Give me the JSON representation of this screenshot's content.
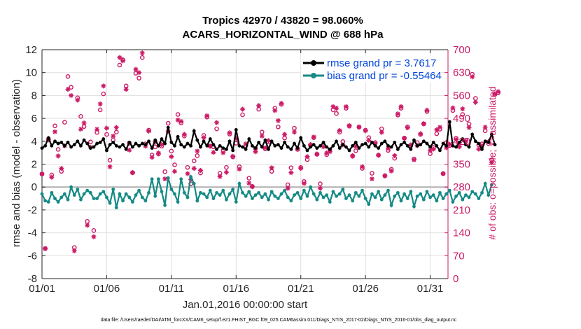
{
  "chart_data": {
    "type": "line",
    "title": "Tropics 42970 / 43820 = 98.060%",
    "subtitle": "ACARS_HORIZONTAL_WIND @ 688 hPa",
    "xlabel": "Jan.01,2016 00:00:00 start",
    "ylabel": "rmse and bias (model - observation)",
    "y2label": "# of obs: o=possible; ×=assimilated",
    "footer": "data file: /Users/raeder/DAI/ATM_forcXX/CAM6_setup/f.e21.FHIST_BGC.f09_025.CAM6assim.011/Diags_NTrS_2017-02/Diags_NTrS_2016-01/obs_diag_output.nc",
    "xlim": [
      0,
      31.375
    ],
    "ylim": [
      -8,
      12
    ],
    "y2lim": [
      0,
      700
    ],
    "x_ticks": [
      0,
      5,
      10,
      15,
      20,
      25,
      30
    ],
    "x_ticklabels": [
      "01/01",
      "01/06",
      "01/11",
      "01/16",
      "01/21",
      "01/26",
      "01/31"
    ],
    "y_ticks": [
      -8,
      -6,
      -4,
      -2,
      0,
      2,
      4,
      6,
      8,
      10,
      12
    ],
    "y2_ticks": [
      0,
      70,
      140,
      210,
      280,
      350,
      420,
      490,
      560,
      630,
      700
    ],
    "legend_location": "top-right",
    "series": [
      {
        "name": "rmse",
        "legend_label": "rmse grand pr = 3.7617",
        "color": "#000000",
        "marker": "circle",
        "values": [
          3.4,
          3.6,
          4.3,
          3.6,
          4.0,
          3.8,
          3.9,
          3.6,
          3.9,
          3.5,
          3.7,
          4.0,
          3.6,
          4.1,
          3.8,
          3.4,
          3.5,
          3.8,
          3.9,
          4.2,
          3.2,
          3.7,
          3.9,
          3.6,
          3.5,
          3.7,
          3.3,
          3.9,
          3.5,
          3.8,
          3.6,
          3.8,
          3.7,
          4.0,
          3.4,
          4.1,
          3.6,
          4.2,
          3.8,
          5.2,
          3.9,
          3.6,
          4.4,
          3.7,
          3.5,
          3.8,
          3.6,
          4.9,
          4.1,
          3.5,
          4.0,
          3.6,
          4.2,
          3.7,
          3.3,
          3.6,
          3.4,
          3.3,
          4.0,
          3.2,
          5.0,
          3.6,
          3.5,
          3.3,
          4.2,
          3.6,
          3.4,
          3.9,
          3.5,
          4.1,
          3.3,
          4.0,
          3.6,
          3.7,
          3.4,
          3.9,
          3.5,
          3.3,
          3.8,
          3.4,
          4.3,
          3.6,
          3.2,
          3.5,
          3.7,
          3.4,
          3.6,
          3.9,
          3.5,
          3.3,
          3.6,
          4.0,
          3.4,
          3.7,
          3.5,
          3.2,
          3.6,
          3.9,
          3.4,
          3.7,
          3.8,
          3.5,
          3.9,
          3.6,
          3.4,
          3.8,
          4.0,
          3.6,
          3.5,
          3.9,
          3.3,
          3.7,
          3.9,
          3.6,
          3.3,
          4.1,
          3.6,
          3.7,
          4.0,
          3.8,
          3.5,
          3.9,
          3.6,
          3.2,
          3.8,
          3.6,
          5.7,
          3.6,
          3.5,
          3.9,
          4.2,
          3.7,
          3.5,
          4.6,
          4.0,
          3.8,
          3.3,
          4.0,
          3.9,
          4.6,
          3.7
        ]
      },
      {
        "name": "bias",
        "legend_label": "bias grand pr = -0.55464",
        "color": "#158a85",
        "marker": "circle",
        "values": [
          -0.6,
          -1.2,
          -1.3,
          -0.5,
          -1.0,
          -1.3,
          -0.9,
          -0.6,
          -1.1,
          0.0,
          -0.7,
          -0.2,
          -1.1,
          -0.6,
          -0.3,
          -0.5,
          -1.0,
          -1.0,
          -0.6,
          -0.4,
          -0.9,
          -1.4,
          -0.2,
          -1.8,
          -0.6,
          -1.2,
          -0.6,
          -0.9,
          -1.3,
          -0.7,
          -0.3,
          -0.9,
          -1.2,
          -0.5,
          0.7,
          -0.8,
          0.7,
          -0.4,
          -1.6,
          0.8,
          -0.2,
          -0.6,
          -1.3,
          0.7,
          -0.5,
          -0.9,
          0.9,
          0.3,
          -1.2,
          -0.5,
          -0.6,
          -0.9,
          -0.3,
          -1.0,
          -0.5,
          -0.7,
          -0.3,
          -1.1,
          -0.6,
          -0.2,
          -1.3,
          0.3,
          -0.5,
          -0.8,
          -0.4,
          -1.0,
          -0.7,
          -0.5,
          -0.9,
          -0.6,
          -1.1,
          -0.4,
          -0.8,
          -1.0,
          -0.6,
          -0.3,
          -0.9,
          -1.2,
          -0.7,
          -0.5,
          -1.0,
          -0.3,
          -0.8,
          0.0,
          -0.6,
          -1.1,
          -0.5,
          -0.9,
          -0.7,
          -1.3,
          -0.4,
          -0.8,
          -0.6,
          -0.2,
          -1.0,
          -0.7,
          -1.2,
          -0.5,
          -0.8,
          -0.3,
          -1.0,
          -1.5,
          -0.6,
          -0.9,
          -0.4,
          -1.1,
          -0.7,
          -0.3,
          -1.6,
          -0.8,
          -0.5,
          -1.2,
          -0.6,
          -1.0,
          -0.4,
          -1.7,
          -0.8,
          -0.6,
          -1.1,
          -0.4,
          -0.9,
          -0.7,
          -1.2,
          -0.5,
          -1.0,
          -0.6,
          -0.3,
          -1.3,
          -0.8,
          -0.5,
          -1.1,
          -0.7,
          -0.9,
          -0.4,
          -0.6,
          -1.0,
          -0.5,
          0.3,
          -0.7,
          0.2
        ]
      }
    ],
    "obs_possible": [
      320,
      92,
      427,
      317,
      467,
      395,
      328,
      478,
      618,
      585,
      95,
      553,
      496,
      465,
      175,
      418,
      147,
      447,
      516,
      565,
      441,
      362,
      424,
      448,
      653,
      669,
      589,
      414,
      324,
      628,
      613,
      676,
      412,
      454,
      378,
      403,
      381,
      405,
      327,
      475,
      390,
      348,
      502,
      476,
      436,
      340,
      290,
      360,
      376,
      323,
      438,
      494,
      405,
      403,
      458,
      322,
      392,
      340,
      442,
      372,
      414,
      342,
      501,
      406,
      307,
      282,
      398,
      518,
      448,
      397,
      408,
      328,
      521,
      464,
      533,
      430,
      287,
      339,
      460,
      395,
      340,
      297,
      364,
      407,
      431,
      380,
      290,
      407,
      379,
      394,
      516,
      505,
      448,
      419,
      521,
      466,
      374,
      391,
      464,
      337,
      454,
      431,
      322,
      416,
      378,
      458,
      315,
      392,
      334,
      368,
      500,
      521,
      430,
      464,
      406,
      366,
      416,
      441,
      473,
      511,
      382,
      401,
      443,
      457,
      321,
      416,
      407,
      514,
      429,
      411,
      502,
      423,
      473,
      625,
      551,
      409,
      412,
      452,
      413,
      363,
      563,
      568
    ],
    "obs_assimilated": [
      320,
      92,
      424,
      310,
      449,
      375,
      337,
      406,
      579,
      560,
      85,
      546,
      457,
      476,
      163,
      402,
      128,
      457,
      534,
      589,
      460,
      342,
      436,
      462,
      676,
      666,
      579,
      393,
      324,
      640,
      630,
      690,
      405,
      451,
      371,
      418,
      384,
      410,
      305,
      451,
      373,
      328,
      485,
      481,
      441,
      321,
      303,
      337,
      390,
      331,
      431,
      498,
      405,
      386,
      477,
      312,
      385,
      325,
      446,
      374,
      428,
      335,
      518,
      412,
      292,
      281,
      388,
      529,
      436,
      400,
      422,
      339,
      514,
      483,
      536,
      441,
      276,
      324,
      448,
      397,
      337,
      291,
      373,
      410,
      433,
      381,
      276,
      403,
      384,
      388,
      526,
      521,
      453,
      409,
      526,
      468,
      376,
      405,
      463,
      342,
      452,
      423,
      305,
      413,
      377,
      447,
      314,
      398,
      329,
      376,
      504,
      526,
      429,
      461,
      409,
      363,
      407,
      443,
      474,
      515,
      392,
      396,
      455,
      463,
      321,
      400,
      411,
      522,
      425,
      403,
      519,
      420,
      462,
      617,
      539,
      396,
      407,
      463,
      419,
      355,
      565,
      572
    ]
  }
}
